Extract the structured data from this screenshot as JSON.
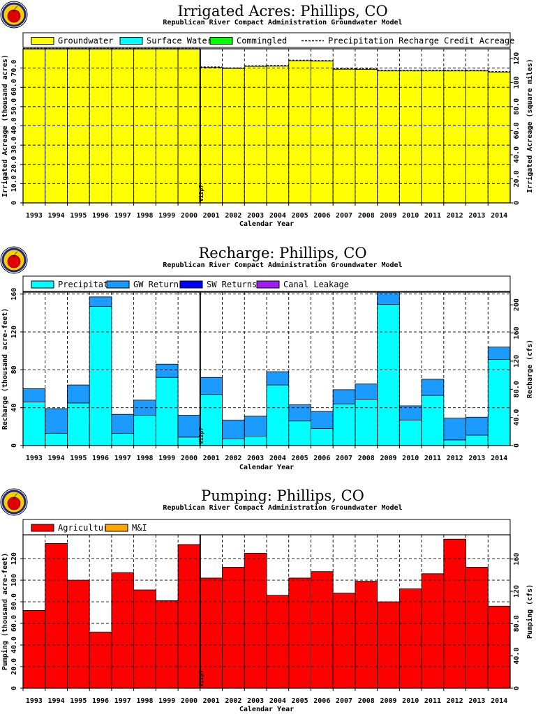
{
  "colors": {
    "groundwater": "#ffff00",
    "surface_water": "#00ffff",
    "commingled": "#00ff00",
    "precipitation": "#00ffff",
    "gw_returns": "#1c9bff",
    "sw_returns": "#0000ff",
    "canal_leakage": "#a020f0",
    "agricultural": "#ff0000",
    "mi": "#ffa500",
    "logo_apple": "#e00000",
    "logo_ring": "#ffcc00"
  },
  "logo_icon": "apple-logo-icon",
  "chart_data": [
    {
      "type": "bar",
      "title": "Irrigated Acres: Phillips, CO",
      "subtitle": "Republican River Compact Administration Groundwater Model",
      "xlabel": "Calendar Year",
      "ylabel": "Irrigated Acreage (thousand acres)",
      "ylabel_right": "Irrigated Acreage (square miles)",
      "categories": [
        "1993",
        "1994",
        "1995",
        "1996",
        "1997",
        "1998",
        "1999",
        "2000",
        "2001",
        "2002",
        "2003",
        "2004",
        "2005",
        "2006",
        "2007",
        "2008",
        "2009",
        "2010",
        "2011",
        "2012",
        "2013",
        "2014"
      ],
      "series": [
        {
          "name": "Groundwater",
          "color_key": "groundwater",
          "values": [
            79.9,
            79.9,
            79.9,
            79.9,
            79.9,
            79.9,
            79.9,
            79.9,
            70.3,
            69.8,
            70.9,
            71.0,
            73.8,
            73.6,
            69.4,
            69.3,
            68.5,
            68.5,
            68.5,
            68.5,
            68.5,
            67.9
          ]
        },
        {
          "name": "Surface Water",
          "color_key": "surface_water",
          "values": [
            0,
            0,
            0,
            0,
            0,
            0,
            0,
            0,
            0,
            0,
            0,
            0,
            0,
            0,
            0,
            0,
            0,
            0,
            0,
            0,
            0,
            0
          ]
        },
        {
          "name": "Commingled",
          "color_key": "commingled",
          "values": [
            0,
            0,
            0,
            0,
            0,
            0,
            0,
            0,
            0,
            0,
            0,
            0,
            0,
            0,
            0,
            0,
            0,
            0,
            0,
            0,
            0,
            0
          ]
        }
      ],
      "line_series": {
        "name": "Precipitation Recharge Credit Acreage",
        "values": [
          80.2,
          80.2,
          80.2,
          80.2,
          80.2,
          80.2,
          80.2,
          80.2,
          70.6,
          70.1,
          71.2,
          71.3,
          74.1,
          73.9,
          69.7,
          69.6,
          68.8,
          68.8,
          68.8,
          68.8,
          68.8,
          68.2
        ]
      },
      "ylim": [
        0,
        80
      ],
      "yticks": [
        "0",
        "10.0",
        "20.0",
        "30.0",
        "40.0",
        "50.0",
        "60.0",
        "70.0"
      ],
      "yticks_right": [
        "0",
        "20.0",
        "40.0",
        "60.0",
        "80.0",
        "100",
        "120"
      ],
      "grid": true,
      "legend": "top",
      "marker": {
        "label": "V12p7",
        "between": [
          "2000",
          "2001"
        ]
      }
    },
    {
      "type": "bar",
      "title": "Recharge: Phillips, CO",
      "subtitle": "Republican River Compact Administration Groundwater Model",
      "xlabel": "Calendar Year",
      "ylabel": "Recharge (thousand acre-feet)",
      "ylabel_right": "Recharge (cfs)",
      "categories": [
        "1993",
        "1994",
        "1995",
        "1996",
        "1997",
        "1998",
        "1999",
        "2000",
        "2001",
        "2002",
        "2003",
        "2004",
        "2005",
        "2006",
        "2007",
        "2008",
        "2009",
        "2010",
        "2011",
        "2012",
        "2013",
        "2014"
      ],
      "series": [
        {
          "name": "Precipitation",
          "color_key": "precipitation",
          "values": [
            46,
            13,
            45,
            147,
            13,
            32,
            72,
            9,
            54,
            7,
            10,
            64,
            26,
            18,
            44,
            49,
            149,
            27,
            53,
            6,
            11,
            91
          ]
        },
        {
          "name": "GW Returns",
          "color_key": "gw_returns",
          "values": [
            14,
            26,
            19,
            10,
            20,
            16,
            14,
            23,
            18,
            20,
            21,
            14,
            17,
            18,
            15,
            16,
            13,
            15,
            17,
            23,
            19,
            13
          ]
        },
        {
          "name": "SW Returns",
          "color_key": "sw_returns",
          "values": [
            0,
            0,
            0,
            0,
            0,
            0,
            0,
            0,
            0,
            0,
            0,
            0,
            0,
            0,
            0,
            0,
            0,
            0,
            0,
            0,
            0,
            0
          ]
        },
        {
          "name": "Canal Leakage",
          "color_key": "canal_leakage",
          "values": [
            0,
            0,
            0,
            0,
            0,
            0,
            0,
            0,
            0,
            0,
            0,
            0,
            0,
            0,
            0,
            0,
            0,
            0,
            0,
            0,
            0,
            0
          ]
        }
      ],
      "ylim": [
        0,
        162
      ],
      "yticks": [
        "0",
        "40",
        "80",
        "120",
        "160"
      ],
      "yticks_right": [
        "0",
        "40.0",
        "80.0",
        "120",
        "160",
        "200"
      ],
      "grid": true,
      "legend": "top",
      "marker": {
        "label": "V12p7",
        "between": [
          "2000",
          "2001"
        ]
      }
    },
    {
      "type": "bar",
      "title": "Pumping: Phillips, CO",
      "subtitle": "Republican River Compact Administration Groundwater Model",
      "xlabel": "Calendar Year",
      "ylabel": "Pumping (thousand acre-feet)",
      "ylabel_right": "Pumping (cfs)",
      "categories": [
        "1993",
        "1994",
        "1995",
        "1996",
        "1997",
        "1998",
        "1999",
        "2000",
        "2001",
        "2002",
        "2003",
        "2004",
        "2005",
        "2006",
        "2007",
        "2008",
        "2009",
        "2010",
        "2011",
        "2012",
        "2013",
        "2014"
      ],
      "series": [
        {
          "name": "Agricultural",
          "color_key": "agricultural",
          "values": [
            72,
            134,
            100,
            52,
            107,
            91,
            81,
            133,
            102,
            112,
            125,
            86,
            102,
            108,
            88,
            99,
            80,
            92,
            106,
            138,
            112,
            76
          ]
        },
        {
          "name": "M&I",
          "color_key": "mi",
          "values": [
            0,
            0,
            0,
            0,
            0,
            0,
            0,
            0,
            0,
            0,
            0,
            0,
            0,
            0,
            0,
            0,
            0,
            0,
            0,
            0,
            0,
            0
          ]
        }
      ],
      "ylim": [
        0,
        142
      ],
      "yticks": [
        "0",
        "20.0",
        "40.0",
        "60.0",
        "80.0",
        "100",
        "120"
      ],
      "yticks_right": [
        "0",
        "40.0",
        "80.0",
        "120",
        "160"
      ],
      "grid": true,
      "legend": "top",
      "marker": {
        "label": "V12p7",
        "between": [
          "2000",
          "2001"
        ]
      }
    }
  ]
}
